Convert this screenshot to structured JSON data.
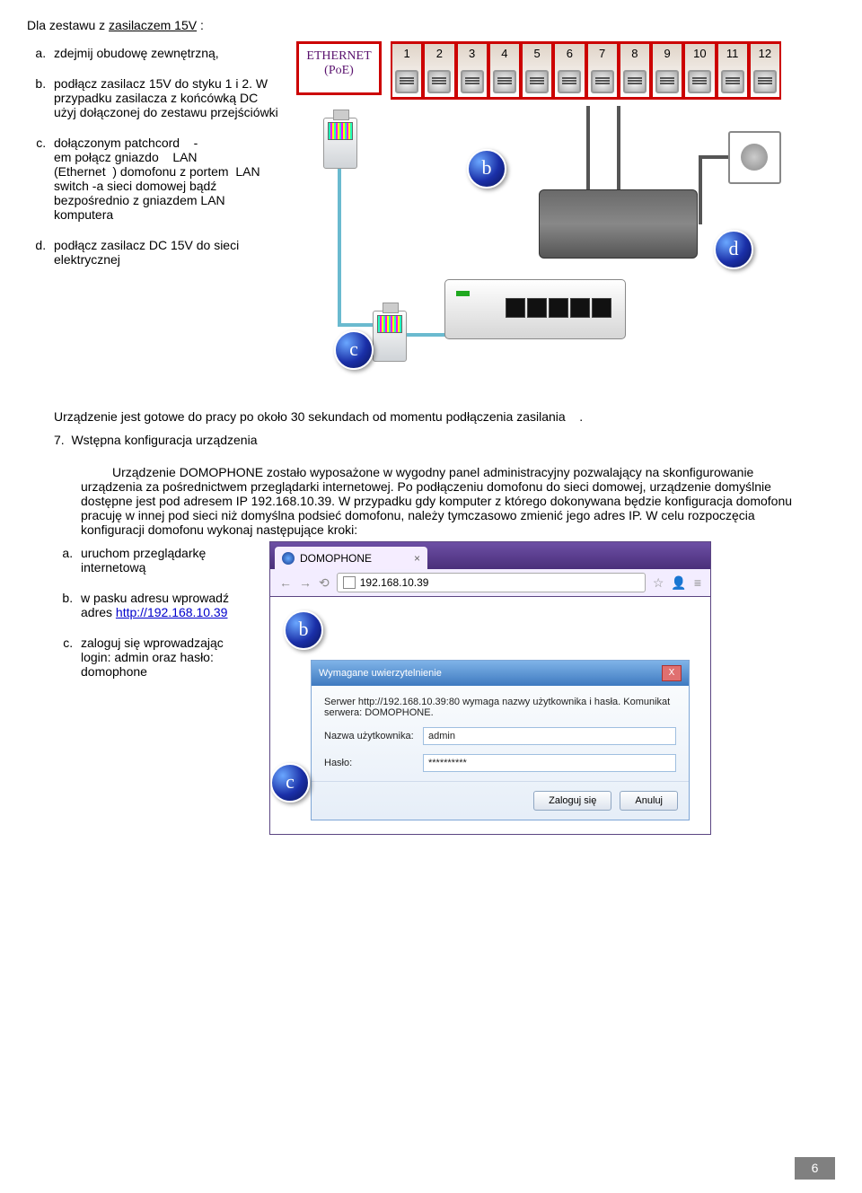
{
  "intro": {
    "prefix": "Dla zestawu z ",
    "psu_label": "zasilaczem 15V",
    "suffix": ":"
  },
  "steps_psu": {
    "a": "zdejmij obudowę zewnętrzną,",
    "b": "podłącz zasilacz 15V do styku 1 i 2. W przypadku zasilacza z końcówką DC użyj dołączonej do zestawu przejściówki",
    "c_p1": "dołączonym patchcord",
    "c_p2": "em połącz gniazdo",
    "c_p3": "(Ethernet",
    "c_p4": ") domofonu z portem",
    "c_p5": "switch",
    "c_p6": "-a sieci domowej bądź bezpośrednio z gniazdem LAN komputera",
    "c_dash": "-",
    "c_lan": "LAN",
    "d": "podłącz zasilacz DC 15V do sieci elektrycznej"
  },
  "diagram1": {
    "eth_line1": "ETHERNET",
    "eth_line2": "(PoE)",
    "port_numbers": [
      "1",
      "2",
      "3",
      "4",
      "5",
      "6",
      "7",
      "8",
      "9",
      "10",
      "11",
      "12"
    ],
    "badge_b": "b",
    "badge_c": "c",
    "badge_d": "d"
  },
  "ready_text": "Urządzenie jest gotowe do pracy po około 30 sekundach od momentu podłączenia zasilania",
  "ready_dot": ".",
  "section7_num": "7.",
  "section7_title": "Wstępna konfiguracja urządzenia",
  "config_text": "Urządzenie DOMOPHONE zostało wyposażone w wygodny panel administracyjny pozwalający na skonfigurowanie       urządzenia za pośrednictwem przeglądarki internetowej. Po podłączeniu domofonu do sieci domowej, urządzenie domyślnie dostępne jest pod adresem IP 192.168.10.39. W przypadku gdy komputer z którego dokonywana będzie konfiguracja domofonu pracuję w innej pod     sieci niż domyślna podsieć domofonu, należy tymczasowo zmienić jego adres IP. W celu rozpoczęcia konfiguracji domofonu wykonaj następujące kroki:",
  "steps_cfg": {
    "a": "uruchom przeglądarkę internetową",
    "b": "w pasku adresu wprowadź adres ",
    "b_link": "http://192.168.10.39",
    "c": "zaloguj się wprowadzając login: admin oraz hasło: domophone"
  },
  "browser": {
    "tab_title": "DOMOPHONE",
    "tab_close": "×",
    "address": "192.168.10.39",
    "star": "☆",
    "auth_title": "Wymagane uwierzytelnienie",
    "auth_close": "X",
    "auth_msg": "Serwer http://192.168.10.39:80 wymaga nazwy użytkownika i hasła. Komunikat serwera: DOMOPHONE.",
    "user_label": "Nazwa użytkownika:",
    "user_value": "admin",
    "pass_label": "Hasło:",
    "pass_value": "**********",
    "login_btn": "Zaloguj się",
    "cancel_btn": "Anuluj",
    "badge_b": "b",
    "badge_c": "c"
  },
  "page_number": "6"
}
